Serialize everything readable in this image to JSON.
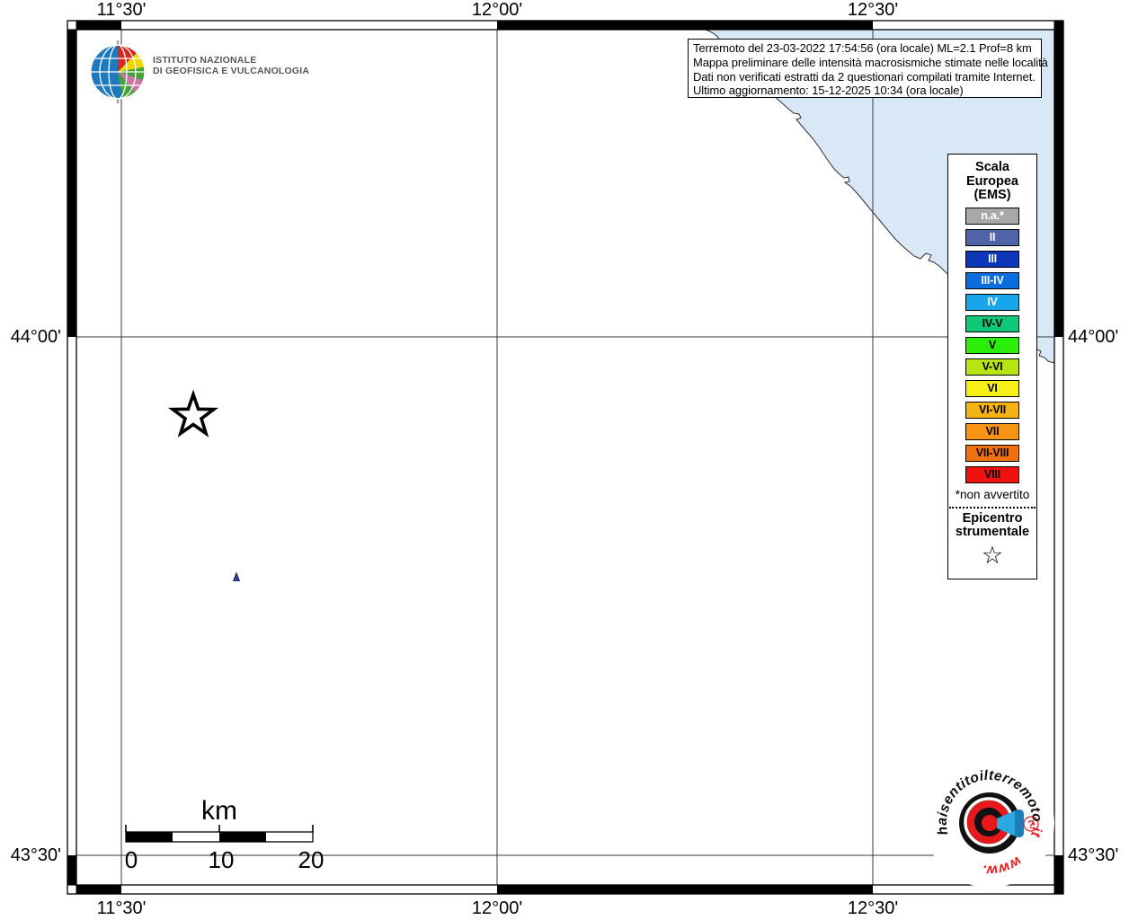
{
  "map": {
    "coordinates": {
      "top": [
        "11°30'",
        "12°00'",
        "12°30'"
      ],
      "bottom": [
        "11°30'",
        "12°00'",
        "12°30'"
      ],
      "left": [
        "44°00'",
        "43°30'"
      ],
      "right": [
        "44°00'",
        "43°30'"
      ]
    },
    "scale_bar": {
      "label": "km",
      "ticks": [
        "0",
        "10",
        "20"
      ]
    },
    "sea_color": "#d9e8f7"
  },
  "info_box": {
    "lines": [
      "Terremoto del 23-03-2022 17:54:56 (ora locale) ML=2.1 Prof=8 km",
      "Mappa preliminare delle intensità macrosismiche stimate nelle località",
      "Dati non verificati estratti da 2 questionari compilati tramite Internet.",
      "Ultimo aggiornamento: 15-12-2025 10:34 (ora locale)"
    ]
  },
  "legend": {
    "title_lines": [
      "Scala",
      "Europea",
      "(EMS)"
    ],
    "items": [
      {
        "label": "n.a.*",
        "color": "#a8a8a8",
        "text_color": "#ffffff"
      },
      {
        "label": "II",
        "color": "#4f63a8",
        "text_color": "#ffffff"
      },
      {
        "label": "III",
        "color": "#0d36b8",
        "text_color": "#ffffff"
      },
      {
        "label": "III-IV",
        "color": "#0c6ede",
        "text_color": "#ffffff"
      },
      {
        "label": "IV",
        "color": "#18a5ea",
        "text_color": "#ffffff"
      },
      {
        "label": "IV-V",
        "color": "#0fc878",
        "text_color": "#000000"
      },
      {
        "label": "V",
        "color": "#2bef0b",
        "text_color": "#000000"
      },
      {
        "label": "V-VI",
        "color": "#b7e512",
        "text_color": "#000000"
      },
      {
        "label": "VI",
        "color": "#f7ef16",
        "text_color": "#000000"
      },
      {
        "label": "VI-VII",
        "color": "#f4b313",
        "text_color": "#000000"
      },
      {
        "label": "VII",
        "color": "#f69413",
        "text_color": "#000000"
      },
      {
        "label": "VII-VIII",
        "color": "#f2710f",
        "text_color": "#000000"
      },
      {
        "label": "VIII",
        "color": "#ef1310",
        "text_color": "#000000"
      }
    ],
    "footnote": "*non avvertito",
    "epicenter_label_lines": [
      "Epicentro",
      "strumentale"
    ],
    "epicenter_symbol": "☆"
  },
  "ingv_logo": {
    "lines": [
      "ISTITUTO NAZIONALE",
      "DI GEOFISICA E VULCANOLOGIA"
    ]
  },
  "hsit_logo": {
    "text_pre": "haisentitoil",
    "text_main": "terremoto",
    "text_tld": ".it",
    "text_www": "www.",
    "question_mark": "?",
    "accent_red": "#e8191c",
    "accent_blue": "#2aa8df"
  }
}
